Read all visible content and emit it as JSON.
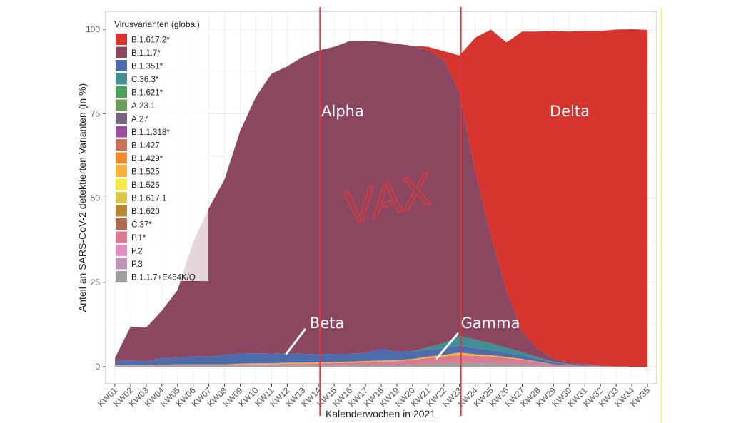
{
  "chart_data": {
    "type": "area",
    "stacked": true,
    "xlabel": "Kalenderwochen in 2021",
    "ylabel": "Anteil an SARS-CoV-2 detektierten Varianten (in %)",
    "ylim": [
      0,
      100
    ],
    "yticks": [
      0,
      25,
      50,
      75,
      100
    ],
    "grid": true,
    "legend_title": "Virusvarianten (global)",
    "legend_position": "top-left",
    "categories": [
      "KW01",
      "KW02",
      "KW03",
      "KW04",
      "KW05",
      "KW06",
      "KW07",
      "KW08",
      "KW09",
      "KW10",
      "KW11",
      "KW12",
      "KW13",
      "KW14",
      "KW15",
      "KW16",
      "KW17",
      "KW18",
      "KW19",
      "KW20",
      "KW21",
      "KW22",
      "KW23",
      "KW24",
      "KW25",
      "KW26",
      "KW27",
      "KW28",
      "KW29",
      "KW30",
      "KW31",
      "KW32",
      "KW33",
      "KW34",
      "KW35"
    ],
    "legend": [
      {
        "name": "B.1.617.2*",
        "color": "#d7342e"
      },
      {
        "name": "B.1.1.7*",
        "color": "#8b4760"
      },
      {
        "name": "B.1.351*",
        "color": "#4d6cae"
      },
      {
        "name": "C.36.3*",
        "color": "#3f8f94"
      },
      {
        "name": "B.1.621*",
        "color": "#4ca05a"
      },
      {
        "name": "A.23.1",
        "color": "#6a9c5a"
      },
      {
        "name": "A.27",
        "color": "#77657e"
      },
      {
        "name": "B.1.1.318*",
        "color": "#9b519c"
      },
      {
        "name": "B.1.427",
        "color": "#c9725a"
      },
      {
        "name": "B.1.429*",
        "color": "#f08a2c"
      },
      {
        "name": "B.1.525",
        "color": "#f9b33a"
      },
      {
        "name": "B.1.526",
        "color": "#f5e94a"
      },
      {
        "name": "B.1.617.1",
        "color": "#dcc64a"
      },
      {
        "name": "B.1.620",
        "color": "#b8862e"
      },
      {
        "name": "C.37*",
        "color": "#b06a50"
      },
      {
        "name": "P.1*",
        "color": "#d97b91"
      },
      {
        "name": "P.2",
        "color": "#e58dc2"
      },
      {
        "name": "P.3",
        "color": "#c195ba"
      },
      {
        "name": "B.1.1.7+E484K/Q",
        "color": "#9e9e9e"
      }
    ],
    "stack_order_bottom_to_top": [
      "B.1.1.7+E484K/Q",
      "P.1*",
      "B.1.525",
      "B.1.351*",
      "C.36.3*",
      "B.1.1.7*",
      "B.1.617.2*"
    ],
    "series": [
      {
        "name": "B.1.1.7+E484K/Q",
        "values": [
          0.2,
          0.2,
          0.2,
          0.3,
          0.3,
          0.3,
          0.3,
          0.3,
          0.3,
          0.3,
          0.3,
          0.4,
          0.4,
          0.4,
          0.4,
          0.4,
          0.5,
          0.5,
          0.5,
          0.5,
          0.8,
          1.0,
          1.2,
          1.0,
          1.0,
          0.8,
          0.6,
          0.4,
          0.1,
          0.1,
          0.1,
          0,
          0,
          0,
          0
        ]
      },
      {
        "name": "P.1*",
        "values": [
          0.1,
          0.1,
          0.1,
          0.2,
          0.2,
          0.2,
          0.2,
          0.2,
          0.3,
          0.4,
          0.4,
          0.5,
          0.5,
          0.6,
          0.7,
          0.8,
          0.9,
          1.0,
          1.2,
          1.5,
          1.8,
          2.0,
          2.3,
          2.2,
          2.0,
          1.8,
          1.5,
          1.0,
          0.5,
          0.3,
          0.2,
          0.1,
          0.1,
          0,
          0
        ]
      },
      {
        "name": "B.1.525",
        "values": [
          0.1,
          0.1,
          0.1,
          0.1,
          0.2,
          0.2,
          0.2,
          0.2,
          0.3,
          0.3,
          0.3,
          0.3,
          0.3,
          0.3,
          0.3,
          0.3,
          0.3,
          0.3,
          0.3,
          0.3,
          0.4,
          0.5,
          0.7,
          0.5,
          0.4,
          0.3,
          0.2,
          0.1,
          0.1,
          0,
          0,
          0,
          0,
          0,
          0
        ]
      },
      {
        "name": "B.1.351*",
        "values": [
          1.2,
          1.5,
          1.2,
          2.0,
          2.0,
          2.3,
          2.3,
          2.8,
          3.0,
          3.0,
          2.8,
          2.8,
          2.6,
          2.4,
          2.4,
          2.3,
          2.4,
          3.5,
          2.5,
          2.3,
          2.0,
          2.0,
          2.0,
          1.8,
          1.5,
          1.2,
          1.0,
          0.8,
          0.5,
          0.3,
          0.2,
          0.1,
          0,
          0,
          0
        ]
      },
      {
        "name": "C.36.3*",
        "values": [
          0,
          0,
          0,
          0,
          0,
          0,
          0,
          0,
          0,
          0,
          0,
          0,
          0,
          0,
          0,
          0,
          0,
          0,
          0,
          0,
          0.8,
          1.5,
          3.0,
          2.5,
          2.0,
          1.5,
          1.0,
          0.5,
          0.3,
          0.1,
          0.1,
          0,
          0,
          0,
          0
        ]
      },
      {
        "name": "B.1.1.7*",
        "values": [
          1.0,
          10.0,
          10.0,
          14.0,
          20.0,
          34.0,
          44.0,
          52.0,
          66.0,
          76.0,
          83.0,
          85.0,
          88.0,
          90.0,
          91.0,
          92.7,
          92.5,
          91.0,
          91.2,
          90.5,
          88.0,
          84.0,
          72.0,
          50.0,
          32.0,
          17.0,
          6.0,
          2.5,
          1.0,
          0.5,
          0.2,
          0.1,
          0,
          0,
          0
        ]
      },
      {
        "name": "B.1.617.2*",
        "values": [
          0,
          0,
          0,
          0,
          0,
          0,
          0,
          0,
          0,
          0,
          0,
          0,
          0,
          0,
          0,
          0,
          0,
          0,
          0,
          0,
          1.0,
          2.5,
          11.0,
          39.5,
          61.0,
          73.5,
          89.0,
          94.0,
          97.0,
          98.0,
          98.7,
          99.2,
          99.8,
          100,
          99.8
        ]
      }
    ],
    "annotations": [
      {
        "text": "Alpha"
      },
      {
        "text": "Delta"
      },
      {
        "text": "Beta"
      },
      {
        "text": "Gamma"
      },
      {
        "text": "VAX"
      }
    ],
    "vertical_lines": [
      {
        "x": "KW14",
        "color": "#e8333a"
      },
      {
        "x": "KW23",
        "color": "#e8333a"
      }
    ]
  }
}
